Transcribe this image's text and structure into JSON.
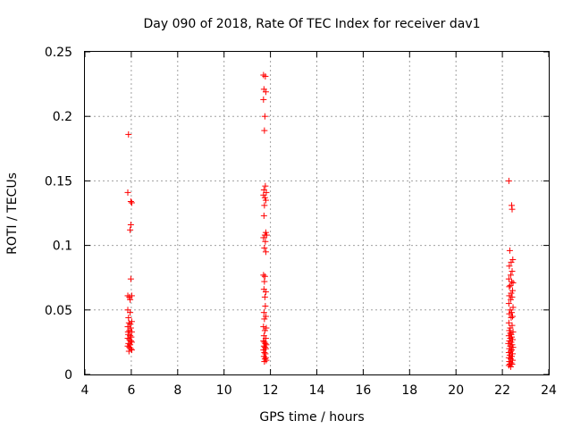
{
  "chart_data": {
    "type": "scatter",
    "title": "Day 090 of 2018, Rate Of TEC Index for receiver dav1",
    "xlabel": "GPS time / hours",
    "ylabel": "ROTI / TECUs",
    "xlim": [
      4,
      24
    ],
    "ylim": [
      0,
      0.25
    ],
    "xticks": [
      "4",
      "6",
      "8",
      "10",
      "12",
      "14",
      "16",
      "18",
      "20",
      "22",
      "24"
    ],
    "yticks": [
      "0",
      "0.05",
      "0.1",
      "0.15",
      "0.2",
      "0.25"
    ],
    "grid": true,
    "marker": "+",
    "color": "#ff0000",
    "series": [
      {
        "points": [
          [
            5.88,
            0.186
          ],
          [
            5.85,
            0.141
          ],
          [
            5.98,
            0.134
          ],
          [
            6.02,
            0.133
          ],
          [
            5.98,
            0.116
          ],
          [
            5.95,
            0.112
          ],
          [
            5.98,
            0.074
          ],
          [
            5.85,
            0.061
          ],
          [
            5.92,
            0.06
          ],
          [
            6.02,
            0.061
          ],
          [
            5.95,
            0.058
          ],
          [
            5.85,
            0.05
          ],
          [
            5.95,
            0.048
          ],
          [
            5.88,
            0.044
          ],
          [
            6.02,
            0.041
          ],
          [
            5.9,
            0.04
          ],
          [
            5.85,
            0.037
          ],
          [
            5.98,
            0.036
          ],
          [
            5.92,
            0.034
          ],
          [
            6.02,
            0.033
          ],
          [
            5.87,
            0.031
          ],
          [
            5.95,
            0.03
          ],
          [
            6.0,
            0.029
          ],
          [
            5.85,
            0.028
          ],
          [
            5.92,
            0.027
          ],
          [
            5.98,
            0.026
          ],
          [
            6.02,
            0.025
          ],
          [
            5.88,
            0.024
          ],
          [
            5.95,
            0.023
          ],
          [
            5.85,
            0.022
          ],
          [
            5.92,
            0.021
          ],
          [
            5.98,
            0.02
          ],
          [
            6.02,
            0.019
          ],
          [
            5.9,
            0.018
          ],
          [
            5.96,
            0.039
          ],
          [
            5.86,
            0.033
          ],
          [
            11.7,
            0.232
          ],
          [
            11.78,
            0.231
          ],
          [
            11.72,
            0.221
          ],
          [
            11.8,
            0.219
          ],
          [
            11.7,
            0.213
          ],
          [
            11.76,
            0.2
          ],
          [
            11.74,
            0.189
          ],
          [
            11.78,
            0.146
          ],
          [
            11.72,
            0.143
          ],
          [
            11.82,
            0.141
          ],
          [
            11.7,
            0.139
          ],
          [
            11.76,
            0.137
          ],
          [
            11.8,
            0.135
          ],
          [
            11.74,
            0.131
          ],
          [
            11.72,
            0.123
          ],
          [
            11.8,
            0.11
          ],
          [
            11.76,
            0.108
          ],
          [
            11.84,
            0.108
          ],
          [
            11.7,
            0.106
          ],
          [
            11.78,
            0.103
          ],
          [
            11.74,
            0.098
          ],
          [
            11.8,
            0.095
          ],
          [
            11.7,
            0.077
          ],
          [
            11.76,
            0.076
          ],
          [
            11.74,
            0.072
          ],
          [
            11.72,
            0.066
          ],
          [
            11.8,
            0.064
          ],
          [
            11.76,
            0.06
          ],
          [
            11.78,
            0.053
          ],
          [
            11.72,
            0.048
          ],
          [
            11.8,
            0.045
          ],
          [
            11.74,
            0.043
          ],
          [
            11.7,
            0.037
          ],
          [
            11.82,
            0.036
          ],
          [
            11.76,
            0.034
          ],
          [
            11.72,
            0.03
          ],
          [
            11.8,
            0.028
          ],
          [
            11.7,
            0.026
          ],
          [
            11.74,
            0.025
          ],
          [
            11.78,
            0.024
          ],
          [
            11.82,
            0.023
          ],
          [
            11.72,
            0.022
          ],
          [
            11.76,
            0.021
          ],
          [
            11.8,
            0.02
          ],
          [
            11.7,
            0.019
          ],
          [
            11.74,
            0.017
          ],
          [
            11.78,
            0.016
          ],
          [
            11.72,
            0.014
          ],
          [
            11.8,
            0.013
          ],
          [
            11.76,
            0.012
          ],
          [
            11.82,
            0.011
          ],
          [
            11.74,
            0.01
          ],
          [
            22.28,
            0.15
          ],
          [
            22.4,
            0.131
          ],
          [
            22.42,
            0.128
          ],
          [
            22.32,
            0.096
          ],
          [
            22.45,
            0.089
          ],
          [
            22.38,
            0.087
          ],
          [
            22.3,
            0.084
          ],
          [
            22.42,
            0.08
          ],
          [
            22.36,
            0.077
          ],
          [
            22.28,
            0.074
          ],
          [
            22.4,
            0.072
          ],
          [
            22.46,
            0.071
          ],
          [
            22.34,
            0.069
          ],
          [
            22.3,
            0.068
          ],
          [
            22.44,
            0.065
          ],
          [
            22.38,
            0.063
          ],
          [
            22.3,
            0.061
          ],
          [
            22.42,
            0.06
          ],
          [
            22.36,
            0.058
          ],
          [
            22.28,
            0.055
          ],
          [
            22.46,
            0.052
          ],
          [
            22.34,
            0.05
          ],
          [
            22.4,
            0.048
          ],
          [
            22.3,
            0.047
          ],
          [
            22.44,
            0.045
          ],
          [
            22.38,
            0.044
          ],
          [
            22.28,
            0.04
          ],
          [
            22.42,
            0.038
          ],
          [
            22.34,
            0.036
          ],
          [
            22.3,
            0.034
          ],
          [
            22.46,
            0.033
          ],
          [
            22.38,
            0.031
          ],
          [
            22.28,
            0.03
          ],
          [
            22.4,
            0.029
          ],
          [
            22.34,
            0.028
          ],
          [
            22.44,
            0.027
          ],
          [
            22.3,
            0.026
          ],
          [
            22.38,
            0.025
          ],
          [
            22.26,
            0.024
          ],
          [
            22.42,
            0.023
          ],
          [
            22.34,
            0.022
          ],
          [
            22.46,
            0.021
          ],
          [
            22.3,
            0.02
          ],
          [
            22.4,
            0.019
          ],
          [
            22.36,
            0.018
          ],
          [
            22.28,
            0.017
          ],
          [
            22.44,
            0.016
          ],
          [
            22.32,
            0.015
          ],
          [
            22.4,
            0.014
          ],
          [
            22.28,
            0.013
          ],
          [
            22.36,
            0.012
          ],
          [
            22.44,
            0.011
          ],
          [
            22.3,
            0.01
          ],
          [
            22.38,
            0.009
          ],
          [
            22.32,
            0.008
          ],
          [
            22.42,
            0.008
          ],
          [
            22.28,
            0.007
          ],
          [
            22.36,
            0.006
          ],
          [
            22.34,
            0.032
          ]
        ]
      }
    ]
  }
}
